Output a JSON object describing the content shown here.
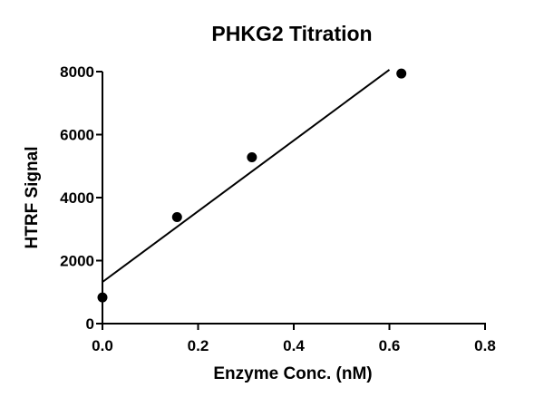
{
  "chart_data": {
    "type": "scatter",
    "title": "PHKG2 Titration",
    "xlabel": "Enzyme Conc. (nM)",
    "ylabel": "HTRF Signal",
    "xlim": [
      0,
      0.8
    ],
    "ylim": [
      0,
      8000
    ],
    "xticks": [
      "0.0",
      "0.2",
      "0.4",
      "0.6",
      "0.8"
    ],
    "yticks": [
      "0",
      "2000",
      "4000",
      "6000",
      "8000"
    ],
    "grid": false,
    "legend": null,
    "series": [
      {
        "name": "PHKG2",
        "x": [
          0,
          0.156,
          0.3125,
          0.625
        ],
        "y": [
          830,
          3380,
          5280,
          7940
        ]
      }
    ],
    "fit_line": {
      "type": "linear",
      "x": [
        0,
        0.6
      ],
      "y": [
        1320,
        8060
      ]
    }
  },
  "colors": {
    "foreground": "#000000",
    "background": "#ffffff"
  }
}
